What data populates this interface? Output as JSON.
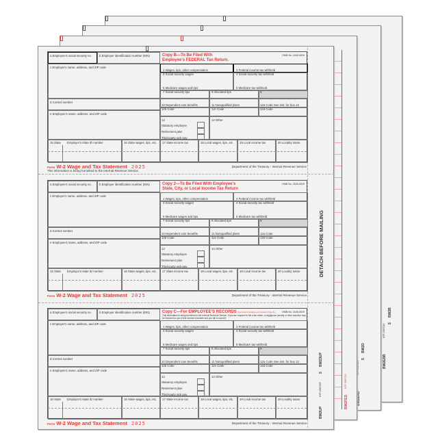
{
  "labels": {
    "a": "a  Employee's social security no.",
    "b": "b  Employer identification number (EIN)",
    "c": "c  Employer's name, address, and ZIP code",
    "d": "d  Control number",
    "e": "e  Employee's name, address, and ZIP code",
    "omb": "OMB No. 1545-0029",
    "b1": "1  Wages, tips, other compensation",
    "b2": "2  Federal income tax withheld",
    "b3": "3  Social security wages",
    "b4": "4  Social security tax withheld",
    "b5": "5  Medicare wages and tips",
    "b6": "6  Medicare tax withheld",
    "b7": "7  Social security tips",
    "b8": "8  Allocated tips",
    "b9": "9",
    "b10": "10  Dependent care benefits",
    "b11": "11  Nonqualified plans",
    "b12b": "12b  Code",
    "b12c": "12c  Code",
    "b12d": "12d  Code",
    "b13": "13",
    "statutory": "Statutory employee",
    "retirement": "Retirement plan",
    "sickpay": "Third-party sick pay",
    "b14": "14  Other",
    "b15": "15  State",
    "stateid": "Employer's state ID number",
    "b16": "16  State wages, tips, etc.",
    "b17": "17  State income tax",
    "b18": "18  Local wages, tips, etc.",
    "b19": "19  Local income tax",
    "b20": "20  Locality name",
    "form_word": "Form",
    "form_title": "W-2 Wage and Tax Statement",
    "year": "2025",
    "dept": "Department of the Treasury - Internal Revenue Service"
  },
  "forms": [
    {
      "copy_line1": "Copy B—To Be Filed With",
      "copy_line2": "Employee's FEDERAL Tax Return.",
      "copy_small": "",
      "note": "",
      "b12a": "12a  Code  See inst. for box 12",
      "subtitle": "This information is being furnished to the Internal Revenue Service."
    },
    {
      "copy_line1": "Copy 2—To Be Filed With Employee's",
      "copy_line2": "State, City, or Local Income Tax Return",
      "copy_small": "",
      "note": "",
      "b12a": "12a  Code",
      "subtitle": ""
    },
    {
      "copy_line1": "Copy C—For EMPLOYEE'S RECORDS",
      "copy_line2": "",
      "copy_small": "(See Notice to Employee on the back of Copy B.)",
      "note": "This information is being furnished to the Internal Revenue Service. If you are required to file a tax return, a negligence penalty or other sanction may be imposed on you if this income is taxable and you fail to report it.",
      "b12a": "12a  Code  See inst. for box 12",
      "subtitle": ""
    }
  ],
  "strip": {
    "detach": "DETACH BEFORE MAILING",
    "front_code1": "BW23UP",
    "front_qty": "5",
    "front_ntf": "NTF 2587009",
    "front_code2": "BW2UP",
    "s2_code": "BW2FED",
    "s2_ntf": "NTF 2587019",
    "s3_code1": "BW2ERD",
    "s3_ntf": "NTF 2587022",
    "s3_qty": "5",
    "s3_code2": "BW2D",
    "s4_code1": "BW2EBB",
    "s4_ntf": "NTF 2587020",
    "s4_qty": "5",
    "s4_code2": "BW2B"
  },
  "colors": {
    "accent_red": "#e53935",
    "paper": "#f2f2f2"
  }
}
